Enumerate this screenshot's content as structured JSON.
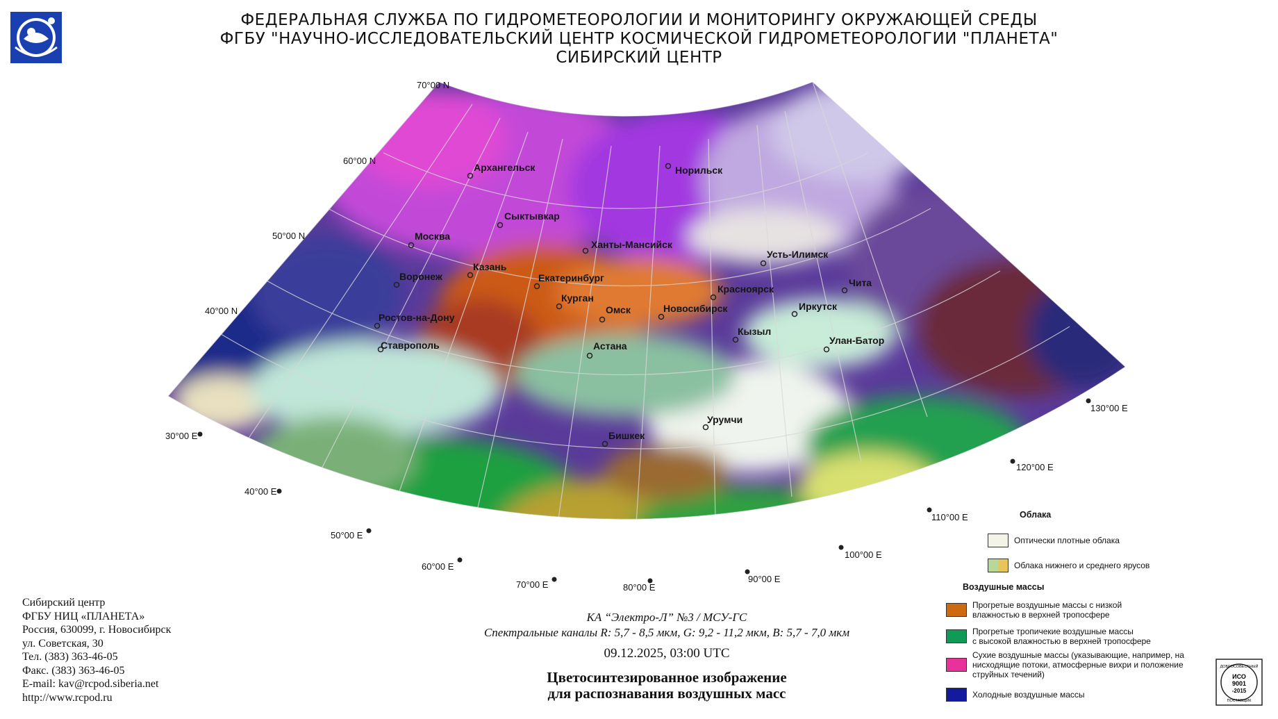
{
  "header": {
    "line1": "ФЕДЕРАЛЬНАЯ СЛУЖБА ПО ГИДРОМЕТЕОРОЛОГИИ И МОНИТОРИНГУ ОКРУЖАЮЩЕЙ СРЕДЫ",
    "line2": "ФГБУ \"НАУЧНО-ИССЛЕДОВАТЕЛЬСКИЙ ЦЕНТР КОСМИЧЕСКОЙ ГИДРОМЕТЕОРОЛОГИИ \"ПЛАНЕТА\"",
    "line3": "СИБИРСКИЙ ЦЕНТР"
  },
  "latitude_labels": [
    "70°00 N",
    "60°00 N",
    "50°00 N",
    "40°00 N"
  ],
  "longitude_labels": [
    "30°00 E",
    "40°00 E",
    "50°00 E",
    "60°00 E",
    "70°00 E",
    "80°00 E",
    "90°00 E",
    "100°00 E",
    "110°00 E",
    "120°00 E",
    "130°00 E"
  ],
  "cities": [
    "Архангельск",
    "Норильск",
    "Сыктывкар",
    "Москва",
    "Ханты-Мансийск",
    "Казань",
    "Усть-Илимск",
    "Воронеж",
    "Екатеринбург",
    "Чита",
    "Красноярск",
    "Курган",
    "Омск",
    "Новосибирск",
    "Иркутск",
    "Ростов-на-Дону",
    "Кызыл",
    "Улан-Батор",
    "Ставрополь",
    "Астана",
    "Урумчи",
    "Бишкек"
  ],
  "contact": {
    "line1": "Сибирский центр",
    "line2": "ФГБУ НИЦ «ПЛАНЕТА»",
    "line3": "Россия, 630099, г. Новосибирск",
    "line4": "ул. Советская, 30",
    "line5": "Тел. (383) 363-46-05",
    "line6": "Факс. (383) 363-46-05",
    "line7": "E-mail: kav@rcpod.siberia.net",
    "line8": "http://www.rcpod.ru"
  },
  "caption": {
    "satellite": "КА “Электро-Л” №3 / МСУ-ГС",
    "channels": "Спектральные каналы R: 5,7 - 8,5 мкм, G: 9,2 - 11,2 мкм, B: 5,7 - 7,0 мкм",
    "datetime": "09.12.2025, 03:00 UTC",
    "title1": "Цветосинтезированное изображение",
    "title2": "для распознавания воздушных масс"
  },
  "legend": {
    "clouds_title": "Облака",
    "clouds": [
      {
        "label": "Оптически плотные облака",
        "color": "#f3f3e6"
      },
      {
        "label": "Облака нижнего и среднего ярусов",
        "colors": [
          "#b8d89a",
          "#e8c45a"
        ]
      }
    ],
    "airmass_title": "Воздушные массы",
    "airmasses": [
      {
        "label1": "Прогретые воздушные массы с низкой",
        "label2": "влажностью в верхней тропосфере",
        "label3": "",
        "color": "#cc6a10"
      },
      {
        "label1": "Прогретые тропичекие воздушные массы",
        "label2": "с высокой влажностью в верхней тропосфере",
        "label3": "",
        "color": "#0f9a55"
      },
      {
        "label1": "Сухие воздушные массы (указывающие, например, на",
        "label2": "нисходящие потоки, атмосферные вихри и положение",
        "label3": "струйных течений)",
        "color": "#e8329a"
      },
      {
        "label1": "Холодные воздушные массы",
        "label2": "",
        "label3": "",
        "color": "#141a9e"
      }
    ]
  },
  "iso_badge": {
    "line1": "ДОБРОСОВЕСТНЫЙ",
    "line2": "ИСО",
    "line3": "9001",
    "line4": "-2015",
    "line5": "ПОСТАВЩИК"
  }
}
